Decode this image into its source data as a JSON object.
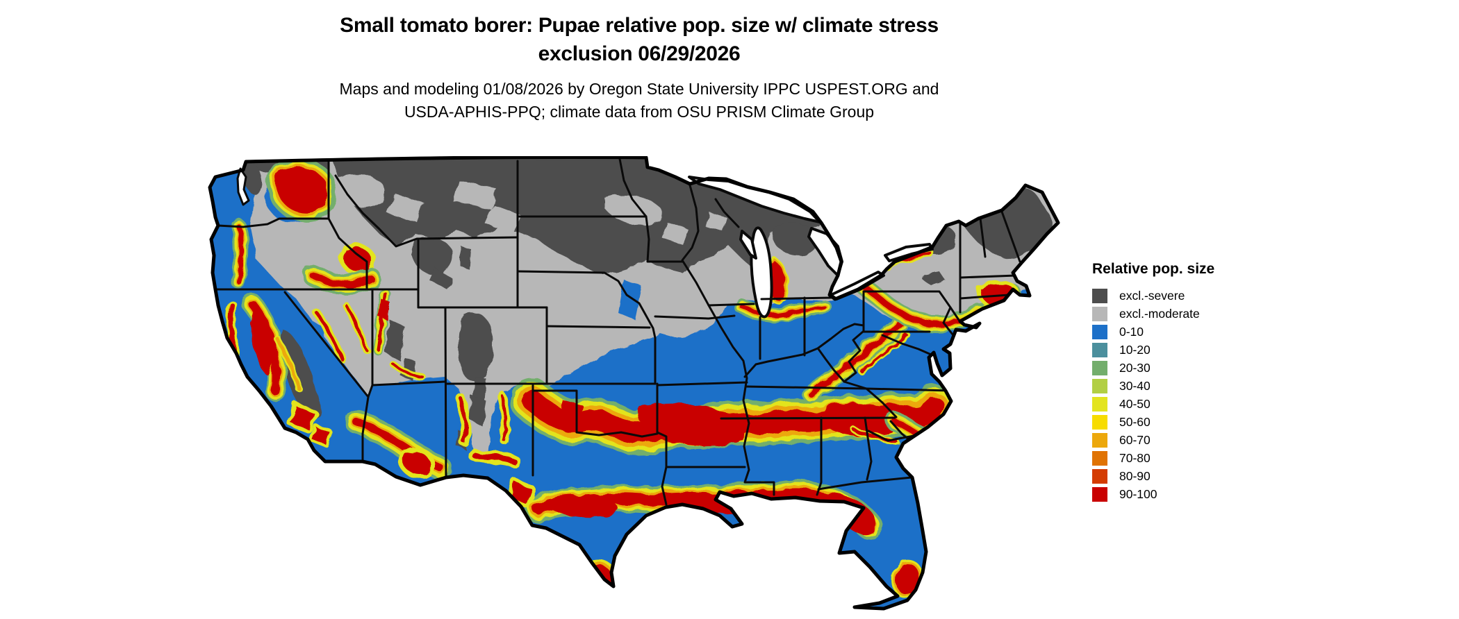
{
  "header": {
    "title_line1": "Small tomato borer: Pupae relative pop. size w/ climate stress",
    "title_line2": "exclusion 06/29/2026",
    "subtitle_line1": "Maps and modeling 01/08/2026 by Oregon State University IPPC USPEST.ORG and",
    "subtitle_line2": "USDA-APHIS-PPQ; climate data from OSU PRISM Climate Group"
  },
  "legend": {
    "title": "Relative pop. size",
    "items": [
      {
        "label": "excl.-severe",
        "color": "#4D4D4D"
      },
      {
        "label": "excl.-moderate",
        "color": "#B7B7B7"
      },
      {
        "label": "0-10",
        "color": "#1D70C8"
      },
      {
        "label": "10-20",
        "color": "#4B8F9D"
      },
      {
        "label": "20-30",
        "color": "#73AE6C"
      },
      {
        "label": "30-40",
        "color": "#B2CF44"
      },
      {
        "label": "40-50",
        "color": "#E3E41F"
      },
      {
        "label": "50-60",
        "color": "#F7DC00"
      },
      {
        "label": "60-70",
        "color": "#ECA80C"
      },
      {
        "label": "70-80",
        "color": "#E07303"
      },
      {
        "label": "80-90",
        "color": "#D43C03"
      },
      {
        "label": "90-100",
        "color": "#C90101"
      }
    ]
  },
  "map": {
    "area": "Continental United States (lower 48 states) with state borders",
    "background_color": "#FFFFFF",
    "border_color": "#000000",
    "zones": [
      {
        "class": "excl.-severe",
        "where": "Northern tier: Montana, North Dakota, Minnesota, Wisconsin, upper Michigan, Adirondacks, northern New England/Maine, high Rockies, Cascades, Sierra Nevada"
      },
      {
        "class": "excl.-moderate",
        "where": "Band south of severe zone: interior Northwest, Great Basin, Wyoming, Colorado, Nebraska, Iowa, northern Missouri, lower Michigan, New York, northern Pennsylvania, southern New England"
      },
      {
        "class": "0-10",
        "where": "Most of the southern and central US: California coast/valleys, Southwest deserts, Texas, Gulf and Atlantic states, Ohio valley"
      },
      {
        "class": "90-100 with 40-80 fringes",
        "where": "Transition bands: ~35N belt from New Mexico through Oklahoma/Arkansas/Tennessee to the Carolinas, Gulf Coast belt, central Texas, south Texas tip, California Central Valley, eastern Washington, Snake River area, Mogollon Rim, Wasatch, Appalachian ridges, Pennsylvania/southern New England, south shore of Lake Michigan, coastal North Carolina, north and south Florida"
      }
    ]
  }
}
